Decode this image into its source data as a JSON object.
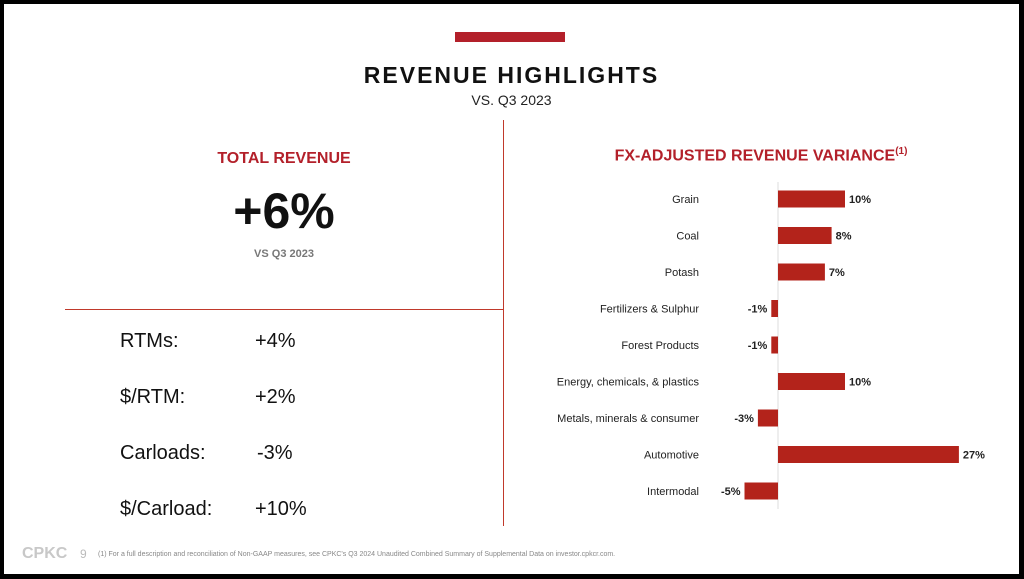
{
  "header": {
    "title": "REVENUE HIGHLIGHTS",
    "subtitle": "VS. Q3 2023"
  },
  "total_revenue": {
    "label": "TOTAL REVENUE",
    "value": "+6%",
    "sub": "VS Q3 2023"
  },
  "metrics": [
    {
      "label": "RTMs:",
      "value": "+4%"
    },
    {
      "label": "$/RTM:",
      "value": "+2%"
    },
    {
      "label": "Carloads:",
      "value": "-3%"
    },
    {
      "label": "$/Carload:",
      "value": "+10%"
    }
  ],
  "chart_data": {
    "type": "bar",
    "orientation": "horizontal",
    "title": "FX-ADJUSTED REVENUE VARIANCE",
    "title_footnote": "(1)",
    "categories": [
      "Grain",
      "Coal",
      "Potash",
      "Fertilizers & Sulphur",
      "Forest Products",
      "Energy, chemicals, & plastics",
      "Metals, minerals & consumer",
      "Automotive",
      "Intermodal"
    ],
    "values": [
      10,
      8,
      7,
      -1,
      -1,
      10,
      -3,
      27,
      -5
    ],
    "data_labels": [
      "10%",
      "8%",
      "7%",
      "-1%",
      "-1%",
      "10%",
      "-3%",
      "27%",
      "-5%"
    ],
    "unit": "%",
    "color": "#b3231b",
    "grid": false
  },
  "footer": {
    "logo": "CPKC",
    "page": "9",
    "note": "(1) For a full description and reconciliation of Non-GAAP measures, see CPKC's Q3 2024 Unaudited Combined Summary of Supplemental Data on investor.cpkcr.com."
  },
  "colors": {
    "accent": "#b3202a"
  }
}
